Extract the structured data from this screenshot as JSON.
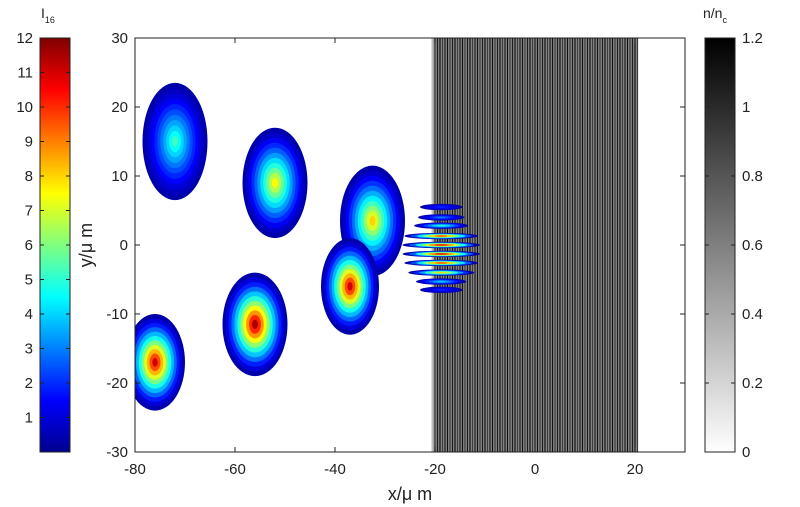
{
  "chart_data": {
    "type": "heatmap",
    "xlabel": "x/μ m",
    "ylabel": "y/μ m",
    "xlim": [
      -80,
      30
    ],
    "ylim": [
      -30,
      30
    ],
    "xticks": [
      -80,
      -60,
      -40,
      -20,
      0,
      20
    ],
    "yticks": [
      -30,
      -20,
      -10,
      0,
      10,
      20,
      30
    ],
    "grid": false,
    "intensity_colorbar": {
      "label_main": "I",
      "label_sub": "16",
      "range": [
        0,
        12
      ],
      "ticks": [
        1,
        2,
        3,
        4,
        5,
        6,
        7,
        8,
        9,
        10,
        11,
        12
      ],
      "colormap": "jet",
      "placement": "left"
    },
    "density_colorbar": {
      "label_main": "n/n",
      "label_sub": "c",
      "range": [
        0,
        1.2
      ],
      "ticks": [
        0,
        0.2,
        0.4,
        0.6,
        0.8,
        1,
        1.2
      ],
      "colormap": "gray-reversed",
      "placement": "right"
    },
    "plasma_slab": {
      "x_range": [
        -20.5,
        20.5
      ],
      "y_range": [
        -30,
        30
      ]
    },
    "pulses": [
      {
        "x": -72,
        "y": 15,
        "radius_x": 6.5,
        "radius_y": 8.5,
        "peak": 5.2
      },
      {
        "x": -52,
        "y": 9,
        "radius_x": 6.5,
        "radius_y": 8,
        "peak": 7.5
      },
      {
        "x": -32.5,
        "y": 3.5,
        "radius_x": 6.5,
        "radius_y": 8,
        "peak": 8
      },
      {
        "x": -37,
        "y": -6,
        "radius_x": 5.8,
        "radius_y": 7,
        "peak": 11
      },
      {
        "x": -56,
        "y": -11.5,
        "radius_x": 6.5,
        "radius_y": 7.5,
        "peak": 11.5
      },
      {
        "x": -76,
        "y": -17,
        "radius_x": 6,
        "radius_y": 7,
        "peak": 11
      }
    ],
    "interference_pattern": {
      "x_range": [
        -24.5,
        -9
      ],
      "y_range": [
        -7,
        6
      ],
      "fringes": [
        {
          "y": 5.5,
          "peak": 2
        },
        {
          "y": 4,
          "peak": 3
        },
        {
          "y": 2.8,
          "peak": 5
        },
        {
          "y": 1.3,
          "peak": 10
        },
        {
          "y": 0,
          "peak": 11
        },
        {
          "y": -1.3,
          "peak": 11
        },
        {
          "y": -2.6,
          "peak": 10
        },
        {
          "y": -4,
          "peak": 8
        },
        {
          "y": -5.3,
          "peak": 4
        },
        {
          "y": -6.5,
          "peak": 2
        }
      ]
    }
  }
}
